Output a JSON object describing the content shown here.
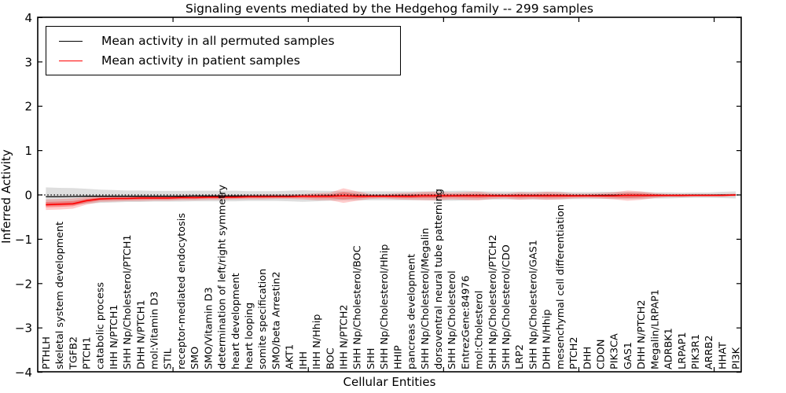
{
  "title": "Signaling events mediated by the Hedgehog family -- 299 samples",
  "legend": {
    "entries": [
      {
        "label": "Mean activity in all permuted samples",
        "color": "#000000"
      },
      {
        "label": "Mean activity in patient samples",
        "color": "#ff0000"
      }
    ]
  },
  "chart_data": {
    "type": "line",
    "title": "Signaling events mediated by the Hedgehog family -- 299 samples",
    "xlabel": "Cellular Entities",
    "ylabel": "Inferred Activity",
    "ylim": [
      -4,
      4
    ],
    "yticks": [
      4,
      3,
      2,
      1,
      0,
      -1,
      -2,
      -3,
      -4
    ],
    "ytick_labels": [
      "4",
      "3",
      "2",
      "1",
      "0",
      "−1",
      "−2",
      "−3",
      "−4"
    ],
    "xticks_top": [
      10,
      20,
      30,
      40,
      50
    ],
    "grid": false,
    "zero_line_style": "dotted",
    "legend_position": "upper left",
    "band_colors": {
      "permuted": "#000000",
      "patient": "#ff0000"
    },
    "categories": [
      "PTHLH",
      "skeletal system development",
      "TGFB2",
      "PTCH1",
      "catabolic process",
      "IHH N/PTCH1",
      "SHH Np/Cholesterol/PTCH1",
      "DHH N/PTCH1",
      "mol:Vitamin D3",
      "STIL",
      "receptor-mediated endocytosis",
      "SMO",
      "SMO/Vitamin D3",
      "determination of left/right symmetry",
      "heart development",
      "heart looping",
      "somite specification",
      "SMO/beta Arrestin2",
      "AKT1",
      "IHH",
      "IHH N/Hhip",
      "BOC",
      "IHH N/PTCH2",
      "SHH Np/Cholesterol/BOC",
      "SHH",
      "SHH Np/Cholesterol/Hhip",
      "HHIP",
      "pancreas development",
      "SHH Np/Cholesterol/Megalin",
      "dorsoventral neural tube patterning",
      "SHH Np/Cholesterol",
      "EntrezGene:84976",
      "mol:Cholesterol",
      "SHH Np/Cholesterol/PTCH2",
      "SHH Np/Cholesterol/CDO",
      "LRP2",
      "SHH Np/Cholesterol/GAS1",
      "DHH N/Hhip",
      "mesenchymal cell differentiation",
      "PTCH2",
      "DHH",
      "CDON",
      "PIK3CA",
      "GAS1",
      "DHH N/PTCH2",
      "Megalin/LRPAP1",
      "ADRBK1",
      "LRPAP1",
      "PIK3R1",
      "ARRB2",
      "HHAT",
      "PI3K"
    ],
    "series": [
      {
        "name": "Mean activity in all permuted samples",
        "color": "#000000",
        "values": [
          -0.04,
          -0.04,
          -0.035,
          -0.03,
          -0.03,
          -0.03,
          -0.03,
          -0.03,
          -0.03,
          -0.03,
          -0.03,
          -0.025,
          -0.025,
          -0.025,
          -0.025,
          -0.025,
          -0.025,
          -0.025,
          -0.025,
          -0.025,
          -0.025,
          -0.02,
          -0.02,
          -0.02,
          -0.02,
          -0.02,
          -0.02,
          -0.02,
          -0.02,
          -0.02,
          -0.02,
          -0.015,
          -0.015,
          -0.015,
          -0.015,
          -0.015,
          -0.015,
          -0.015,
          -0.015,
          -0.015,
          -0.015,
          -0.01,
          -0.01,
          -0.01,
          -0.01,
          -0.01,
          -0.01,
          -0.01,
          -0.005,
          -0.005,
          0,
          0
        ],
        "band_lo": [
          -0.25,
          -0.24,
          -0.225,
          -0.2,
          -0.18,
          -0.17,
          -0.16,
          -0.16,
          -0.15,
          -0.15,
          -0.15,
          -0.145,
          -0.145,
          -0.145,
          -0.145,
          -0.135,
          -0.135,
          -0.135,
          -0.145,
          -0.155,
          -0.145,
          -0.13,
          -0.12,
          -0.12,
          -0.12,
          -0.12,
          -0.12,
          -0.12,
          -0.12,
          -0.13,
          -0.13,
          -0.125,
          -0.115,
          -0.105,
          -0.105,
          -0.105,
          -0.105,
          -0.105,
          -0.105,
          -0.095,
          -0.095,
          -0.09,
          -0.09,
          -0.09,
          -0.09,
          -0.08,
          -0.08,
          -0.07,
          -0.065,
          -0.065,
          -0.07,
          -0.08
        ],
        "band_hi": [
          0.17,
          0.16,
          0.155,
          0.14,
          0.12,
          0.11,
          0.1,
          0.1,
          0.09,
          0.09,
          0.09,
          0.095,
          0.095,
          0.095,
          0.095,
          0.085,
          0.085,
          0.085,
          0.095,
          0.105,
          0.095,
          0.09,
          0.08,
          0.08,
          0.08,
          0.08,
          0.08,
          0.08,
          0.08,
          0.09,
          0.09,
          0.095,
          0.085,
          0.075,
          0.075,
          0.075,
          0.075,
          0.075,
          0.075,
          0.065,
          0.065,
          0.07,
          0.07,
          0.07,
          0.07,
          0.06,
          0.06,
          0.05,
          0.055,
          0.055,
          0.07,
          0.08
        ]
      },
      {
        "name": "Mean activity in patient samples",
        "color": "#ff0000",
        "values": [
          -0.22,
          -0.21,
          -0.2,
          -0.13,
          -0.09,
          -0.08,
          -0.08,
          -0.07,
          -0.07,
          -0.07,
          -0.06,
          -0.06,
          -0.05,
          -0.05,
          -0.05,
          -0.04,
          -0.04,
          -0.04,
          -0.04,
          -0.03,
          -0.03,
          -0.03,
          -0.02,
          -0.03,
          -0.03,
          -0.03,
          -0.03,
          -0.03,
          -0.02,
          -0.02,
          -0.02,
          -0.02,
          -0.02,
          -0.02,
          -0.02,
          -0.02,
          -0.02,
          -0.02,
          -0.02,
          -0.02,
          -0.02,
          -0.02,
          -0.02,
          -0.01,
          -0.01,
          -0.01,
          -0.01,
          -0.01,
          -0.01,
          -0.01,
          -0.01,
          0
        ],
        "band_lo": [
          -0.34,
          -0.33,
          -0.31,
          -0.22,
          -0.16,
          -0.15,
          -0.14,
          -0.14,
          -0.13,
          -0.13,
          -0.12,
          -0.12,
          -0.11,
          -0.11,
          -0.1,
          -0.1,
          -0.1,
          -0.09,
          -0.09,
          -0.1,
          -0.12,
          -0.12,
          -0.18,
          -0.13,
          -0.09,
          -0.08,
          -0.1,
          -0.11,
          -0.12,
          -0.12,
          -0.1,
          -0.11,
          -0.12,
          -0.09,
          -0.08,
          -0.11,
          -0.09,
          -0.11,
          -0.1,
          -0.08,
          -0.07,
          -0.08,
          -0.1,
          -0.13,
          -0.11,
          -0.07,
          -0.05,
          -0.05,
          -0.04,
          -0.04,
          -0.04,
          -0.03
        ],
        "band_hi": [
          -0.1,
          -0.09,
          -0.08,
          -0.05,
          -0.03,
          -0.03,
          -0.02,
          -0.02,
          -0.02,
          -0.02,
          -0.01,
          -0.01,
          -0.01,
          0,
          0,
          0,
          0.01,
          0.01,
          0.01,
          0.02,
          0.04,
          0.05,
          0.15,
          0.08,
          0.02,
          0.02,
          0.04,
          0.05,
          0.07,
          0.07,
          0.05,
          0.06,
          0.07,
          0.04,
          0.03,
          0.06,
          0.05,
          0.07,
          0.06,
          0.03,
          0.03,
          0.04,
          0.06,
          0.1,
          0.08,
          0.04,
          0.02,
          0.02,
          0.02,
          0.02,
          0.02,
          0.03
        ]
      }
    ]
  }
}
